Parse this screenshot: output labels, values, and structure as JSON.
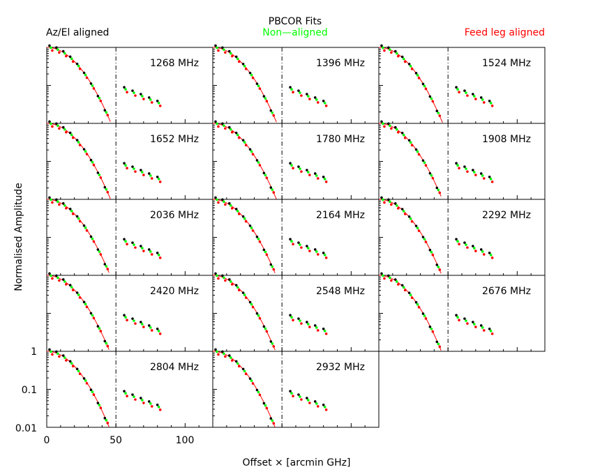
{
  "chart_data": {
    "type": "scatter",
    "title": "PBCOR Fits",
    "legend": [
      {
        "name": "Az/El aligned",
        "color": "#000000",
        "placement": "top-left"
      },
      {
        "name": "Non—aligned",
        "color": "#00ff00",
        "placement": "top-center"
      },
      {
        "name": "Feed leg aligned",
        "color": "#ff0000",
        "placement": "top-right"
      }
    ],
    "xlabel": "Offset × [arcmin GHz]",
    "ylabel": "Normalised Amplitude",
    "xlim": [
      0,
      120
    ],
    "ylim": [
      0.01,
      1
    ],
    "yscale": "log",
    "xticks": [
      "0",
      "50",
      "100"
    ],
    "yticks": [
      "1",
      "0.1",
      "0.01"
    ],
    "reference_line_x": 50,
    "colors": {
      "fit": "#ff0000",
      "azel": "#000000",
      "nonaligned": "#00ff00",
      "feedleg": "#ff0000"
    },
    "panels": [
      {
        "label": "1268 MHz",
        "freq": 1268
      },
      {
        "label": "1396 MHz",
        "freq": 1396
      },
      {
        "label": "1524 MHz",
        "freq": 1524
      },
      {
        "label": "1652 MHz",
        "freq": 1652
      },
      {
        "label": "1780 MHz",
        "freq": 1780
      },
      {
        "label": "1908 MHz",
        "freq": 1908
      },
      {
        "label": "2036 MHz",
        "freq": 2036
      },
      {
        "label": "2164 MHz",
        "freq": 2164
      },
      {
        "label": "2292 MHz",
        "freq": 2292
      },
      {
        "label": "2420 MHz",
        "freq": 2420
      },
      {
        "label": "2548 MHz",
        "freq": 2548
      },
      {
        "label": "2676 MHz",
        "freq": 2676
      },
      {
        "label": "2804 MHz",
        "freq": 2804
      },
      {
        "label": "2932 MHz",
        "freq": 2932
      }
    ]
  }
}
